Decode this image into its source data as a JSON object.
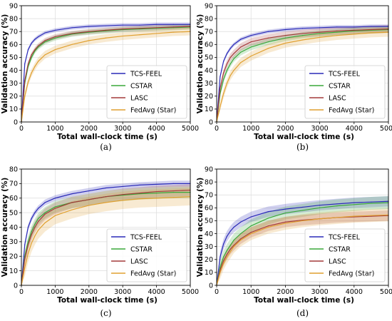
{
  "figure": {
    "colors": {
      "TCS-FEEL": "#2a2ab8",
      "CSTAR": "#3aa83a",
      "LASC": "#a33a3a",
      "FedAvg (Star)": "#e0a030",
      "grid": "#dcdcdc"
    }
  },
  "chart_data": [
    {
      "caption": "(a)",
      "type": "line",
      "xlabel": "Total wall-clock time (s)",
      "ylabel": "Validation accuracy (%)",
      "xlim": [
        0,
        5000
      ],
      "ylim": [
        0,
        90
      ],
      "xticks": [
        0,
        1000,
        2000,
        3000,
        4000,
        5000
      ],
      "yticks": [
        0,
        10,
        20,
        30,
        40,
        50,
        60,
        70,
        80,
        90
      ],
      "grid": true,
      "legend": "bottom-right",
      "series": [
        {
          "name": "TCS-FEEL",
          "x": [
            0,
            100,
            200,
            300,
            400,
            500,
            700,
            1000,
            1500,
            2000,
            2500,
            3000,
            3500,
            4000,
            4500,
            5000
          ],
          "y": [
            0,
            45,
            56,
            61,
            64,
            66,
            69,
            71,
            73,
            74,
            74.5,
            75,
            75,
            75.5,
            75.5,
            75.5
          ],
          "band": 1.5
        },
        {
          "name": "CSTAR",
          "x": [
            0,
            100,
            200,
            300,
            400,
            500,
            700,
            1000,
            1500,
            2000,
            2500,
            3000,
            3500,
            4000,
            4500,
            5000
          ],
          "y": [
            0,
            30,
            43,
            50,
            55,
            58,
            62,
            65,
            68,
            69.5,
            70.5,
            71.5,
            72,
            72.5,
            73,
            73.5
          ],
          "band": 2
        },
        {
          "name": "LASC",
          "x": [
            0,
            100,
            200,
            300,
            400,
            500,
            700,
            1000,
            1500,
            2000,
            2500,
            3000,
            3500,
            4000,
            4500,
            5000
          ],
          "y": [
            0,
            32,
            45,
            52,
            56,
            59,
            63,
            66,
            68.5,
            70,
            71,
            72,
            72.5,
            73,
            73.5,
            74
          ],
          "band": 2
        },
        {
          "name": "FedAvg (Star)",
          "x": [
            0,
            100,
            200,
            300,
            400,
            500,
            700,
            1000,
            1500,
            2000,
            2500,
            3000,
            3500,
            4000,
            4500,
            5000
          ],
          "y": [
            0,
            20,
            31,
            38,
            43,
            47,
            52,
            56,
            60,
            63,
            65,
            66.5,
            67.5,
            68.5,
            69.5,
            70
          ],
          "band": 3
        }
      ]
    },
    {
      "caption": "(b)",
      "type": "line",
      "xlabel": "Total wall-clock time (s)",
      "ylabel": "Validation accuracy (%)",
      "xlim": [
        0,
        5000
      ],
      "ylim": [
        0,
        90
      ],
      "xticks": [
        0,
        1000,
        2000,
        3000,
        4000,
        5000
      ],
      "yticks": [
        0,
        10,
        20,
        30,
        40,
        50,
        60,
        70,
        80,
        90
      ],
      "grid": true,
      "legend": "bottom-right",
      "series": [
        {
          "name": "TCS-FEEL",
          "x": [
            0,
            100,
            200,
            300,
            400,
            500,
            700,
            1000,
            1500,
            2000,
            2500,
            3000,
            3500,
            4000,
            4500,
            5000
          ],
          "y": [
            0,
            35,
            47,
            53,
            57,
            60,
            64,
            67,
            70,
            71.5,
            72.5,
            73,
            73.5,
            73.5,
            74,
            74
          ],
          "band": 1.5
        },
        {
          "name": "CSTAR",
          "x": [
            0,
            100,
            200,
            300,
            400,
            500,
            700,
            1000,
            1500,
            2000,
            2500,
            3000,
            3500,
            4000,
            4500,
            5000
          ],
          "y": [
            0,
            22,
            33,
            40,
            45,
            49,
            54,
            58,
            62,
            65,
            67,
            68.5,
            69.5,
            70.5,
            71,
            71.5
          ],
          "band": 2.5
        },
        {
          "name": "LASC",
          "x": [
            0,
            100,
            200,
            300,
            400,
            500,
            700,
            1000,
            1500,
            2000,
            2500,
            3000,
            3500,
            4000,
            4500,
            5000
          ],
          "y": [
            0,
            26,
            38,
            45,
            50,
            53,
            58,
            62,
            65,
            67,
            68.5,
            69.5,
            70.5,
            71,
            71.5,
            72
          ],
          "band": 3
        },
        {
          "name": "FedAvg (Star)",
          "x": [
            0,
            100,
            200,
            300,
            400,
            500,
            700,
            1000,
            1500,
            2000,
            2500,
            3000,
            3500,
            4000,
            4500,
            5000
          ],
          "y": [
            0,
            12,
            22,
            30,
            36,
            40,
            46,
            51,
            57,
            61,
            63.5,
            65.5,
            67,
            68,
            69,
            69.5
          ],
          "band": 3.5
        }
      ]
    },
    {
      "caption": "(c)",
      "type": "line",
      "xlabel": "Total wall-clock time (s)",
      "ylabel": "Validation accuracy (%)",
      "xlim": [
        0,
        5000
      ],
      "ylim": [
        0,
        80
      ],
      "xticks": [
        0,
        1000,
        2000,
        3000,
        4000,
        5000
      ],
      "yticks": [
        0,
        10,
        20,
        30,
        40,
        50,
        60,
        70,
        80
      ],
      "grid": true,
      "legend": "bottom-right",
      "series": [
        {
          "name": "TCS-FEEL",
          "x": [
            0,
            100,
            200,
            300,
            400,
            500,
            700,
            1000,
            1500,
            2000,
            2500,
            3000,
            3500,
            4000,
            4500,
            5000
          ],
          "y": [
            0,
            28,
            40,
            46,
            50,
            53,
            57,
            60,
            63,
            65,
            67,
            68,
            69,
            69.5,
            70,
            70
          ],
          "band": 2
        },
        {
          "name": "CSTAR",
          "x": [
            0,
            100,
            200,
            300,
            400,
            500,
            700,
            1000,
            1500,
            2000,
            2500,
            3000,
            3500,
            4000,
            4500,
            5000
          ],
          "y": [
            0,
            20,
            30,
            37,
            42,
            46,
            50,
            54,
            57,
            59,
            61,
            62,
            63,
            63.5,
            64,
            64
          ],
          "band": 4
        },
        {
          "name": "LASC",
          "x": [
            0,
            100,
            200,
            300,
            400,
            500,
            700,
            1000,
            1500,
            2000,
            2500,
            3000,
            3500,
            4000,
            4500,
            5000
          ],
          "y": [
            0,
            18,
            28,
            35,
            40,
            44,
            49,
            53,
            57,
            59,
            61,
            62.5,
            63.5,
            64.5,
            65,
            65.5
          ],
          "band": 4
        },
        {
          "name": "FedAvg (Star)",
          "x": [
            0,
            100,
            200,
            300,
            400,
            500,
            700,
            1000,
            1500,
            2000,
            2500,
            3000,
            3500,
            4000,
            4500,
            5000
          ],
          "y": [
            0,
            12,
            22,
            29,
            34,
            38,
            43,
            48,
            52,
            55,
            57,
            58.5,
            59.5,
            60,
            60.5,
            61
          ],
          "band": 6
        }
      ]
    },
    {
      "caption": "(d)",
      "type": "line",
      "xlabel": "Total wall-clock time (s)",
      "ylabel": "Validation accuracy (%)",
      "xlim": [
        0,
        5000
      ],
      "ylim": [
        0,
        90
      ],
      "xticks": [
        0,
        1000,
        2000,
        3000,
        4000,
        5000
      ],
      "yticks": [
        0,
        10,
        20,
        30,
        40,
        50,
        60,
        70,
        80,
        90
      ],
      "grid": true,
      "legend": "bottom-right",
      "series": [
        {
          "name": "TCS-FEEL",
          "x": [
            0,
            100,
            200,
            300,
            400,
            500,
            700,
            1000,
            1500,
            2000,
            2500,
            3000,
            3500,
            4000,
            4500,
            5000
          ],
          "y": [
            0,
            22,
            32,
            38,
            42,
            45,
            49,
            53,
            57,
            59,
            60.5,
            62,
            63,
            64,
            64.5,
            65
          ],
          "band": 4
        },
        {
          "name": "CSTAR",
          "x": [
            0,
            100,
            200,
            300,
            400,
            500,
            700,
            1000,
            1500,
            2000,
            2500,
            3000,
            3500,
            4000,
            4500,
            5000
          ],
          "y": [
            0,
            14,
            22,
            27,
            31,
            35,
            40,
            46,
            52,
            56,
            58,
            60,
            61.5,
            62.5,
            63.5,
            64
          ],
          "band": 5
        },
        {
          "name": "LASC",
          "x": [
            0,
            100,
            200,
            300,
            400,
            500,
            700,
            1000,
            1500,
            2000,
            2500,
            3000,
            3500,
            4000,
            4500,
            5000
          ],
          "y": [
            0,
            12,
            19,
            24,
            28,
            31,
            36,
            41,
            46,
            49,
            50.5,
            51.5,
            52.5,
            53,
            53.5,
            54
          ],
          "band": 4
        },
        {
          "name": "FedAvg (Star)",
          "x": [
            0,
            100,
            200,
            300,
            400,
            500,
            700,
            1000,
            1500,
            2000,
            2500,
            3000,
            3500,
            4000,
            4500,
            5000
          ],
          "y": [
            0,
            10,
            17,
            22,
            26,
            30,
            35,
            40,
            45,
            48,
            50,
            51.5,
            52.5,
            53.5,
            54,
            54.5
          ],
          "band": 5
        }
      ]
    }
  ]
}
